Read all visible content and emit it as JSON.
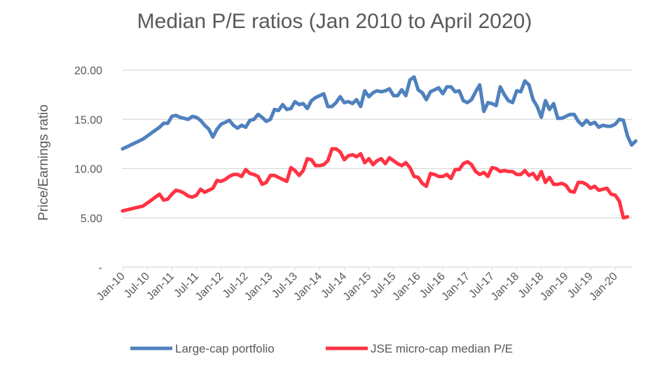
{
  "chart_data": {
    "type": "line",
    "title": "Median P/E ratios (Jan 2010 to April 2020)",
    "xlabel": "",
    "ylabel": "Price/Earnings ratio",
    "x_start": "Jan-10",
    "x_frequency": "monthly",
    "x_ticks": [
      "Jan-10",
      "Jul-10",
      "Jan-11",
      "Jul-11",
      "Jan-12",
      "Jul-12",
      "Jan-13",
      "Jul-13",
      "Jan-14",
      "Jul-14",
      "Jan-15",
      "Jul-15",
      "Jan-16",
      "Jul-16",
      "Jan-17",
      "Jul-17",
      "Jan-18",
      "Jul-18",
      "Jan-19",
      "Jul-19",
      "Jan-20"
    ],
    "y_ticks": [
      {
        "value": 0,
        "label": "-"
      },
      {
        "value": 5,
        "label": "5.00"
      },
      {
        "value": 10,
        "label": "10.00"
      },
      {
        "value": 15,
        "label": "15.00"
      },
      {
        "value": 20,
        "label": "20.00"
      }
    ],
    "ylim": [
      0,
      20
    ],
    "grid": "horizontal",
    "legend": "bottom",
    "series": [
      {
        "name": "Large-cap portfolio",
        "color": "#4F81BD",
        "values": [
          12.0,
          12.2,
          12.4,
          12.6,
          12.8,
          13.0,
          13.3,
          13.6,
          13.9,
          14.2,
          14.6,
          14.6,
          15.3,
          15.4,
          15.2,
          15.1,
          15.0,
          15.3,
          15.2,
          14.9,
          14.4,
          14.0,
          13.2,
          14.0,
          14.5,
          14.7,
          14.9,
          14.4,
          14.1,
          14.4,
          14.2,
          14.9,
          15.0,
          15.5,
          15.2,
          14.8,
          15.0,
          16.0,
          15.9,
          16.5,
          16.0,
          16.1,
          16.8,
          16.5,
          16.6,
          16.1,
          16.9,
          17.2,
          17.4,
          17.6,
          16.3,
          16.3,
          16.7,
          17.3,
          16.7,
          16.8,
          16.6,
          17.0,
          16.3,
          17.9,
          17.3,
          17.7,
          17.9,
          17.8,
          17.9,
          18.1,
          17.4,
          17.4,
          18.0,
          17.4,
          19.0,
          19.3,
          18.0,
          17.7,
          17.0,
          17.8,
          18.0,
          18.2,
          17.6,
          18.3,
          18.3,
          17.8,
          17.9,
          16.9,
          16.7,
          17.0,
          17.8,
          18.5,
          15.8,
          16.7,
          16.6,
          16.4,
          18.3,
          17.5,
          16.9,
          16.7,
          17.9,
          17.8,
          18.9,
          18.5,
          17.0,
          16.3,
          15.2,
          16.9,
          16.0,
          16.6,
          15.1,
          15.1,
          15.3,
          15.5,
          15.5,
          14.8,
          14.4,
          14.9,
          14.5,
          14.7,
          14.2,
          14.4,
          14.3,
          14.3,
          14.5,
          15.0,
          14.9,
          13.3,
          12.4,
          12.8
        ]
      },
      {
        "name": "JSE micro-cap median P/E",
        "color": "#FF3344",
        "values": [
          5.7,
          5.8,
          5.9,
          6.0,
          6.1,
          6.2,
          6.5,
          6.8,
          7.1,
          7.4,
          6.8,
          6.9,
          7.4,
          7.8,
          7.7,
          7.5,
          7.2,
          7.1,
          7.3,
          7.9,
          7.6,
          7.8,
          8.0,
          8.8,
          8.7,
          8.9,
          9.2,
          9.4,
          9.4,
          9.2,
          9.9,
          9.5,
          9.4,
          9.2,
          8.4,
          8.6,
          9.3,
          9.3,
          9.1,
          8.9,
          8.7,
          10.1,
          9.8,
          9.3,
          9.8,
          11.0,
          10.9,
          10.3,
          10.3,
          10.4,
          10.8,
          12.0,
          12.0,
          11.7,
          10.9,
          11.3,
          11.4,
          11.2,
          11.5,
          10.6,
          11.0,
          10.4,
          10.8,
          11.0,
          10.5,
          11.1,
          10.8,
          10.5,
          10.3,
          10.6,
          10.1,
          9.2,
          9.1,
          8.5,
          8.2,
          9.5,
          9.4,
          9.2,
          9.2,
          9.4,
          9.0,
          9.9,
          9.9,
          10.5,
          10.7,
          10.4,
          9.7,
          9.4,
          9.6,
          9.2,
          10.1,
          10.0,
          9.7,
          9.8,
          9.7,
          9.7,
          9.4,
          9.4,
          9.8,
          9.3,
          9.5,
          8.9,
          9.7,
          8.6,
          9.1,
          8.4,
          8.4,
          8.5,
          8.3,
          7.7,
          7.6,
          8.6,
          8.6,
          8.4,
          8.0,
          8.2,
          7.8,
          7.9,
          8.0,
          7.4,
          7.3,
          6.7,
          5.0,
          5.1
        ]
      }
    ]
  }
}
